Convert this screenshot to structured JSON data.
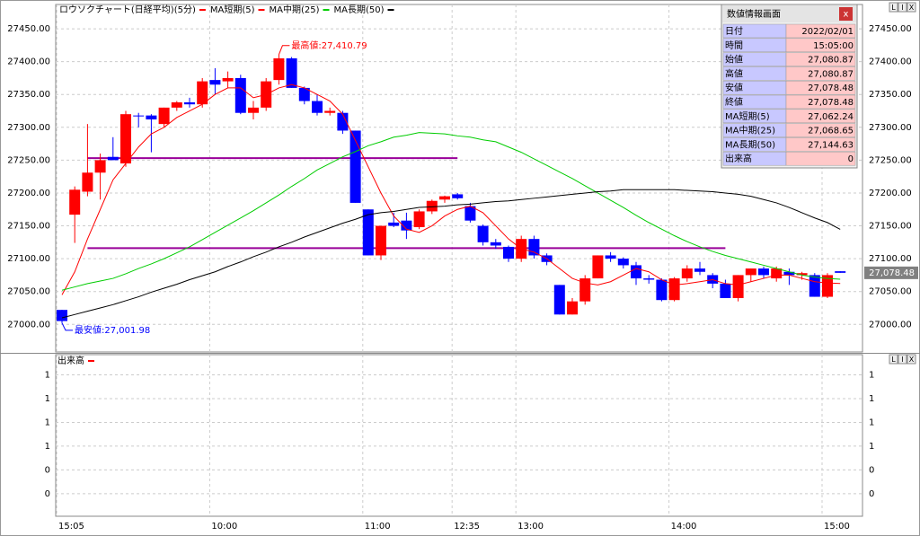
{
  "chart_data": [
    {
      "type": "candlestick",
      "categories": [
        "15:05",
        null,
        null,
        null,
        null,
        null,
        null,
        null,
        null,
        null,
        null,
        null,
        "10:00",
        null,
        null,
        null,
        null,
        null,
        null,
        null,
        null,
        null,
        null,
        null,
        "11:00",
        null,
        null,
        null,
        null,
        null,
        null,
        "12:35",
        null,
        null,
        null,
        null,
        "13:00",
        null,
        null,
        null,
        null,
        null,
        null,
        null,
        null,
        null,
        null,
        null,
        "14:00",
        null,
        null,
        null,
        null,
        null,
        null,
        null,
        null,
        null,
        null,
        null,
        "15:00",
        null
      ],
      "series": [
        {
          "name": "ロウソクチャート(日経平均)(5分)",
          "color": "#ff0000",
          "down_color": "#0000ff",
          "open": [
            27022,
            27167,
            27202,
            27231,
            27255,
            27245,
            27318,
            27318,
            27305,
            27330,
            27338,
            27335,
            27372,
            27370,
            27375,
            27322,
            27330,
            27372,
            27405,
            27360,
            27340,
            27322,
            27322,
            27295,
            27175,
            27105,
            27155,
            27158,
            27148,
            27172,
            27190,
            27198,
            27180,
            27150,
            27125,
            27118,
            27100,
            27130,
            27105,
            27060,
            27015,
            27035,
            27070,
            27105,
            27100,
            27090,
            27070,
            27068,
            27037,
            27070,
            27085,
            27075,
            27062,
            27040,
            27075,
            27085,
            27070,
            27080,
            27075,
            27075,
            27042,
            27080.87
          ],
          "high": [
            27022,
            27210,
            27305,
            27260,
            27285,
            27325,
            27322,
            27320,
            27330,
            27340,
            27345,
            27375,
            27390,
            27385,
            27380,
            27340,
            27375,
            27410.79,
            27407,
            27362,
            27350,
            27330,
            27325,
            27295,
            27175,
            27150,
            27170,
            27170,
            27175,
            27190,
            27196,
            27200,
            27185,
            27152,
            27130,
            27120,
            27135,
            27135,
            27108,
            27060,
            27040,
            27075,
            27105,
            27110,
            27102,
            27095,
            27075,
            27070,
            27072,
            27090,
            27095,
            27078,
            27068,
            27075,
            27085,
            27088,
            27088,
            27085,
            27080,
            27078,
            27078,
            27080.87
          ],
          "low": [
            27001.98,
            27124,
            27195,
            27190,
            27250,
            27240,
            27300,
            27262,
            27300,
            27325,
            27330,
            27330,
            27350,
            27360,
            27320,
            27312,
            27325,
            27365,
            27360,
            27335,
            27318,
            27318,
            27290,
            27185,
            27105,
            27098,
            27148,
            27130,
            27145,
            27168,
            27185,
            27190,
            27155,
            27120,
            27115,
            27095,
            27095,
            27100,
            27090,
            27015,
            27015,
            27030,
            27070,
            27095,
            27085,
            27060,
            27062,
            27035,
            27035,
            27065,
            27075,
            27055,
            27040,
            27035,
            27065,
            27070,
            27065,
            27060,
            27068,
            27042,
            27040,
            27078.48
          ],
          "close": [
            27005,
            27205,
            27231,
            27250,
            27250,
            27320,
            27317,
            27312,
            27330,
            27338,
            27335,
            27370,
            27365,
            27375,
            27322,
            27330,
            27370,
            27405,
            27360,
            27340,
            27322,
            27325,
            27295,
            27185,
            27105,
            27150,
            27150,
            27143,
            27172,
            27188,
            27195,
            27192,
            27158,
            27125,
            27120,
            27100,
            27130,
            27105,
            27095,
            27015,
            27035,
            27070,
            27105,
            27100,
            27090,
            27070,
            27068,
            27037,
            27070,
            27085,
            27080,
            27062,
            27040,
            27075,
            27085,
            27075,
            27085,
            27075,
            27078,
            27042,
            27075,
            27078.48
          ]
        },
        {
          "name": "MA短期(5)",
          "color": "#ff0000",
          "values": [
            27045,
            27080,
            27130,
            27175,
            27220,
            27245,
            27270,
            27290,
            27300,
            27315,
            27325,
            27335,
            27350,
            27360,
            27360,
            27345,
            27350,
            27360,
            27365,
            27360,
            27350,
            27340,
            27320,
            27280,
            27240,
            27200,
            27165,
            27145,
            27140,
            27150,
            27165,
            27175,
            27180,
            27170,
            27150,
            27130,
            27115,
            27110,
            27100,
            27085,
            27070,
            27063,
            27060,
            27065,
            27075,
            27085,
            27080,
            27068,
            27060,
            27062,
            27065,
            27068,
            27062,
            27060,
            27065,
            27070,
            27075,
            27075,
            27070,
            27065,
            27063,
            27062.24
          ]
        },
        {
          "name": "MA中期(25)",
          "color": "#00cc00",
          "values": [
            27052,
            27057,
            27062,
            27066,
            27070,
            27077,
            27085,
            27092,
            27100,
            27109,
            27118,
            27129,
            27140,
            27151,
            27162,
            27173,
            27185,
            27197,
            27210,
            27222,
            27235,
            27245,
            27255,
            27263,
            27272,
            27278,
            27285,
            27288,
            27292,
            27291,
            27290,
            27287,
            27285,
            27281,
            27278,
            27270,
            27262,
            27252,
            27242,
            27232,
            27222,
            27211,
            27200,
            27189,
            27178,
            27166,
            27155,
            27145,
            27135,
            27126,
            27118,
            27111,
            27105,
            27100,
            27095,
            27090,
            27085,
            27080,
            27075,
            27072,
            27070,
            27068.65
          ]
        },
        {
          "name": "MA長期(50)",
          "color": "#000000",
          "values": [
            27010,
            27015,
            27020,
            27025,
            27030,
            27036,
            27042,
            27049,
            27055,
            27061,
            27068,
            27074,
            27080,
            27088,
            27095,
            27103,
            27110,
            27118,
            27125,
            27133,
            27140,
            27147,
            27154,
            27160,
            27167,
            27170,
            27172,
            27175,
            27178,
            27179,
            27180,
            27182,
            27183,
            27185,
            27187,
            27188,
            27190,
            27192,
            27194,
            27196,
            27198,
            27200,
            27202,
            27203,
            27205,
            27205,
            27205,
            27205,
            27205,
            27204,
            27203,
            27202,
            27200,
            27198,
            27195,
            27190,
            27185,
            27178,
            27170,
            27162,
            27155,
            27144.63
          ]
        }
      ],
      "hlines": [
        {
          "value": 27253,
          "from": 2,
          "to": 31,
          "color": "#990099"
        },
        {
          "value": 27116,
          "from": 2,
          "to": 52,
          "color": "#990099"
        }
      ],
      "annotations": [
        {
          "text": "最高値:27,410.79",
          "x": 17,
          "value": 27410.79,
          "color": "#ff0000"
        },
        {
          "text": "最安値:27,001.98",
          "x": 0,
          "value": 27001.98,
          "color": "#0000ff"
        }
      ],
      "last_price": {
        "value": 27078.48,
        "label": "27,078.48"
      },
      "ylim": [
        26958,
        27487
      ],
      "yticks": [
        {
          "value": 27000,
          "label": "27000.00"
        },
        {
          "value": 27050,
          "label": "27050.00"
        },
        {
          "value": 27100,
          "label": "27100.00"
        },
        {
          "value": 27150,
          "label": "27150.00"
        },
        {
          "value": 27200,
          "label": "27200.00"
        },
        {
          "value": 27250,
          "label": "27250.00"
        },
        {
          "value": 27300,
          "label": "27300.00"
        },
        {
          "value": 27350,
          "label": "27350.00"
        },
        {
          "value": 27400,
          "label": "27400.00"
        },
        {
          "value": 27450,
          "label": "27450.00"
        }
      ],
      "grid": true
    },
    {
      "type": "volume",
      "title": "出来高",
      "color": "#ff0000",
      "ylim": [
        0.01,
        1.37
      ],
      "yticks": [
        {
          "value": 1.2,
          "label": "1"
        },
        {
          "value": 1.0,
          "label": "1"
        },
        {
          "value": 0.8,
          "label": "1"
        },
        {
          "value": 0.6,
          "label": "1"
        },
        {
          "value": 0.4,
          "label": "0"
        },
        {
          "value": 0.2,
          "label": "0"
        }
      ],
      "grid": true
    }
  ],
  "panel_buttons": [
    "L",
    "I",
    "X"
  ],
  "info_panel": {
    "title": "数値情報画面",
    "close": "x",
    "rows": [
      [
        "日付",
        "2022/02/01"
      ],
      [
        "時間",
        "15:05:00"
      ],
      [
        "始値",
        "27,080.87"
      ],
      [
        "高値",
        "27,080.87"
      ],
      [
        "安値",
        "27,078.48"
      ],
      [
        "終値",
        "27,078.48"
      ],
      [
        "MA短期(5)",
        "27,062.24"
      ],
      [
        "MA中期(25)",
        "27,068.65"
      ],
      [
        "MA長期(50)",
        "27,144.63"
      ],
      [
        "出来高",
        "0"
      ]
    ]
  }
}
